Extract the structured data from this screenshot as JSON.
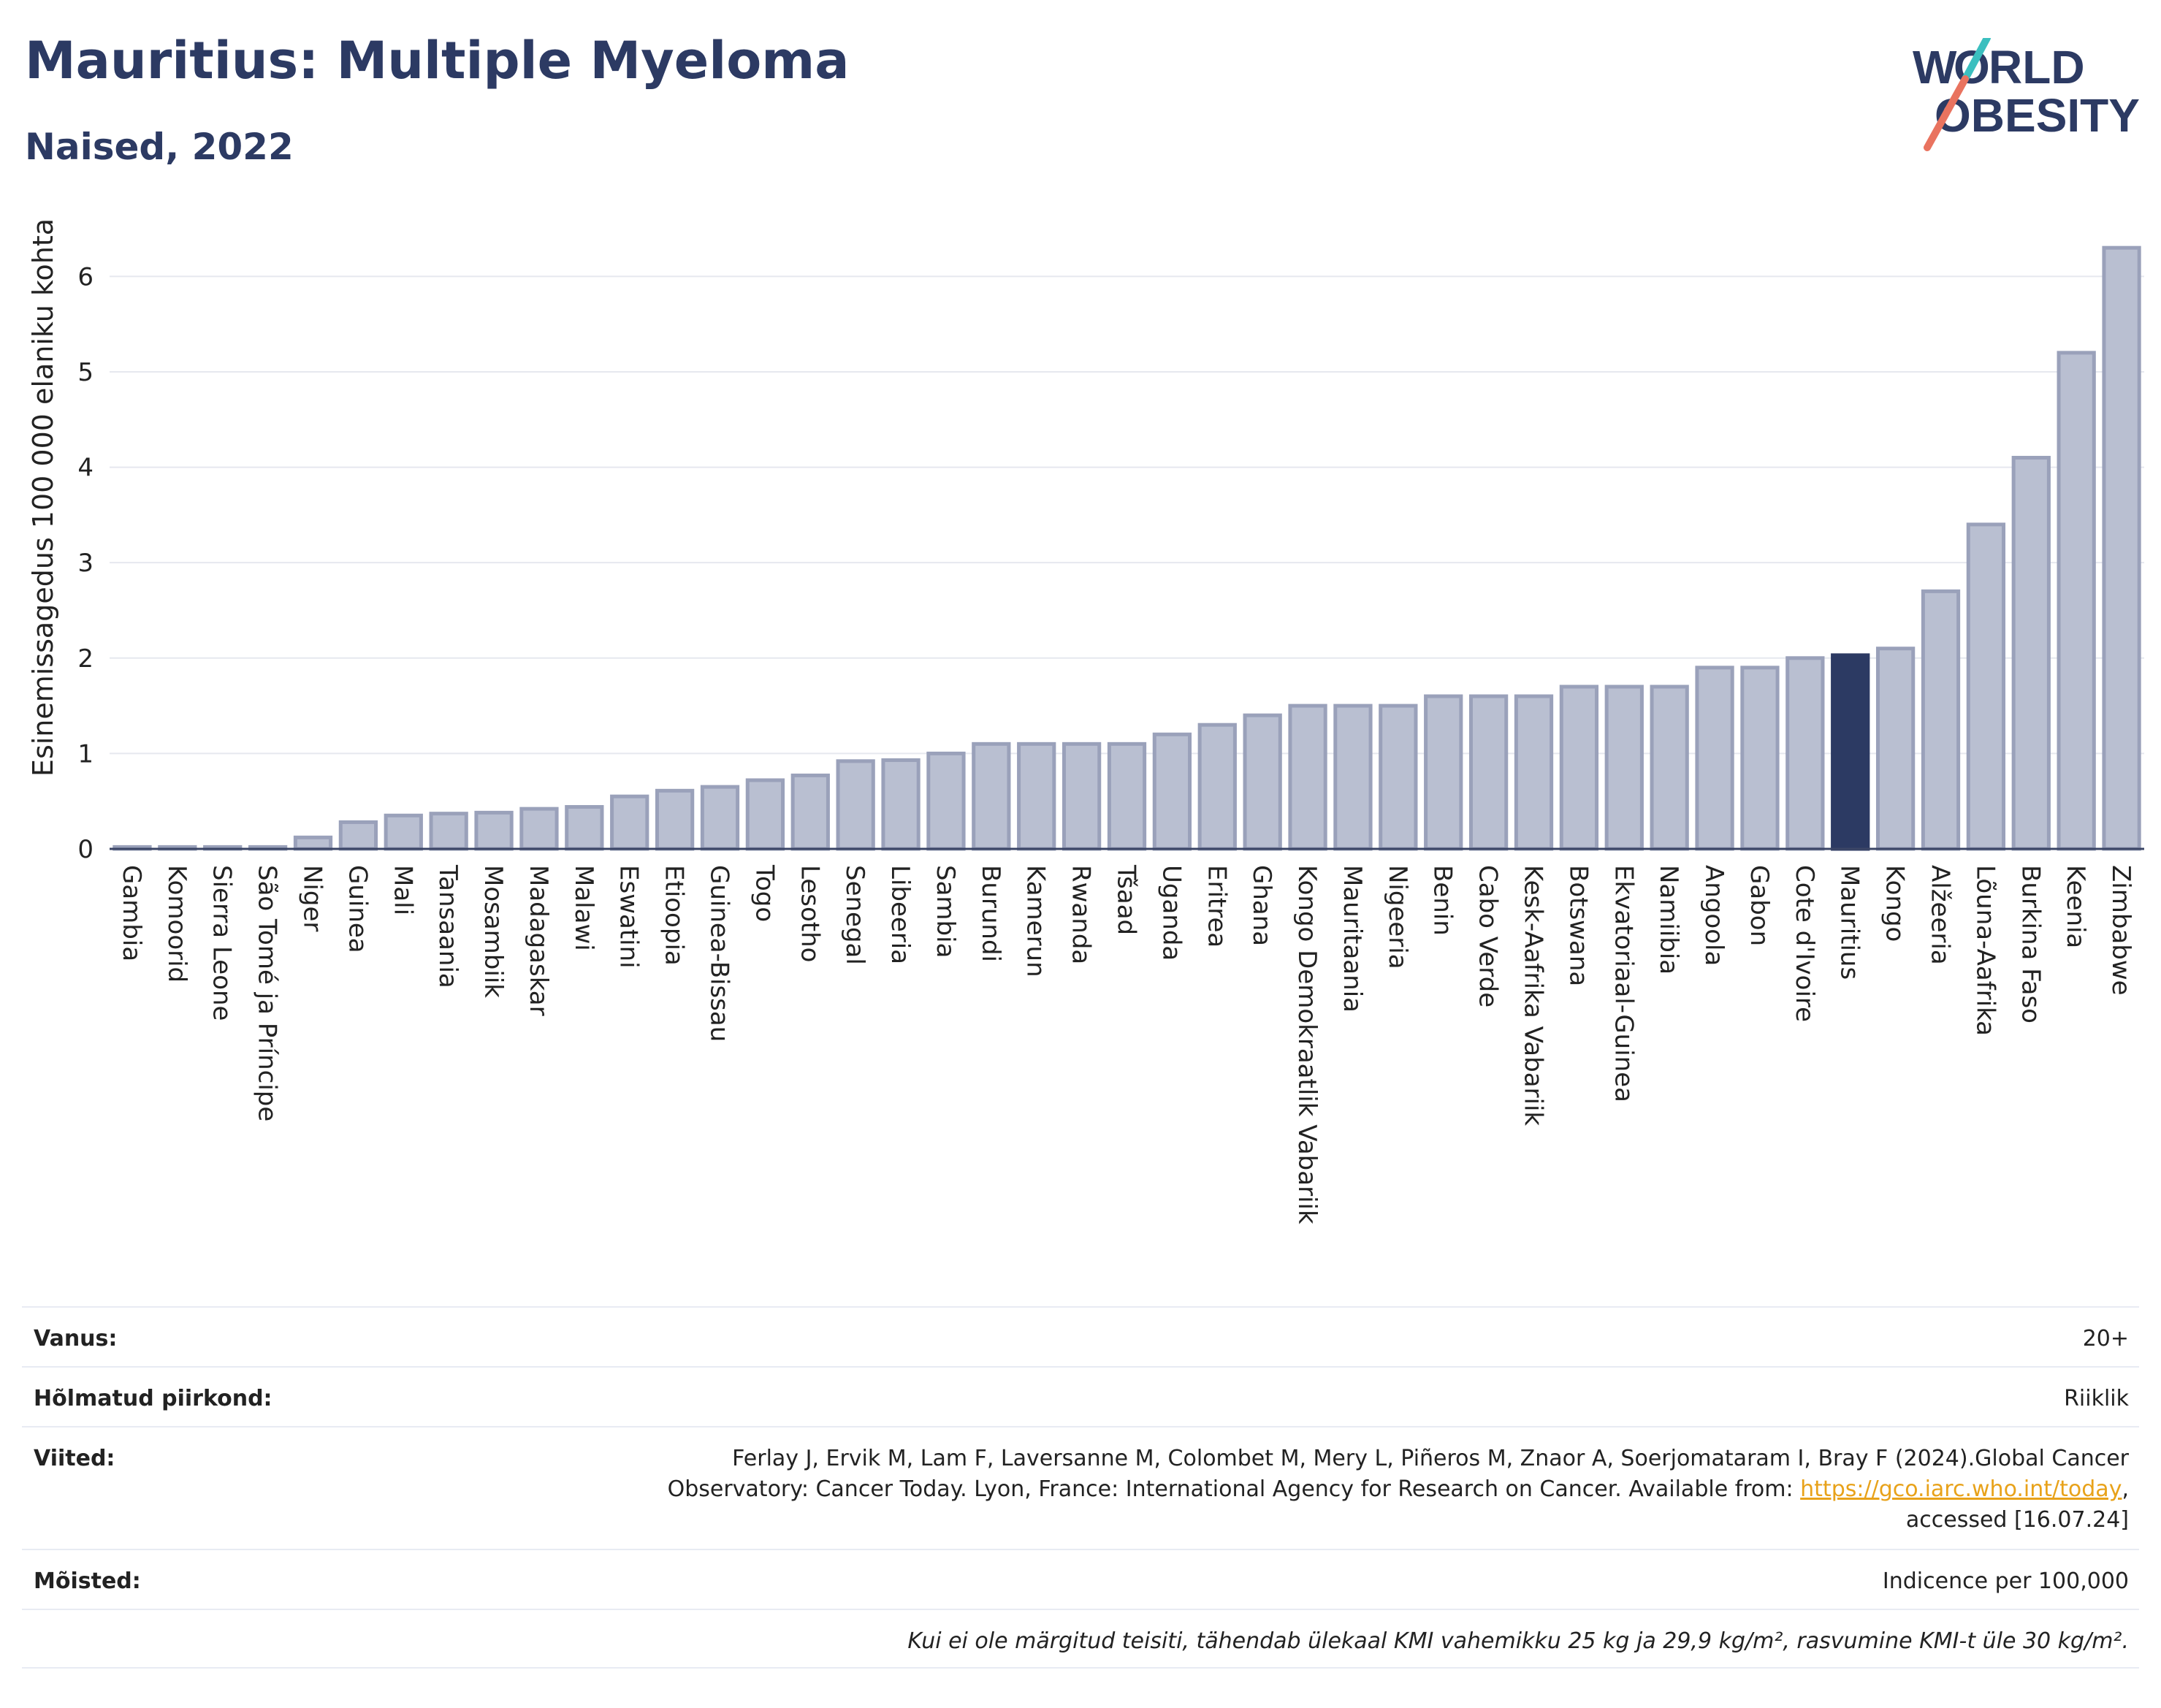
{
  "header": {
    "title": "Mauritius: Multiple Myeloma",
    "subtitle": "Naised, 2022"
  },
  "logo": {
    "line1": "WORLD",
    "line2": "OBESITY",
    "accent_teal": "#3bbfbf",
    "accent_coral": "#e9735f",
    "text_color": "#2c3a63"
  },
  "colors": {
    "bar": "#b9bfd1",
    "bar_stroke": "#9aa1ba",
    "highlight": "#2c3a63",
    "title": "#2c3a63",
    "grid": "#e6e8ef"
  },
  "chart_data": {
    "type": "bar",
    "ylabel": "Esinemissagedus 100 000 elaniku kohta",
    "ylim": [
      0,
      6.6
    ],
    "yticks": [
      0,
      1,
      2,
      3,
      4,
      5,
      6
    ],
    "highlight": "Mauritius",
    "grid": true,
    "categories": [
      "Gambia",
      "Komoorid",
      "Sierra Leone",
      "São Tomé ja Príncipe",
      "Niger",
      "Guinea",
      "Mali",
      "Tansaania",
      "Mosambiik",
      "Madagaskar",
      "Malawi",
      "Eswatini",
      "Etioopia",
      "Guinea-Bissau",
      "Togo",
      "Lesotho",
      "Senegal",
      "Libeeria",
      "Sambia",
      "Burundi",
      "Kamerun",
      "Rwanda",
      "Tšaad",
      "Uganda",
      "Eritrea",
      "Ghana",
      "Kongo Demokraatlik Vabariik",
      "Mauritaania",
      "Nigeeria",
      "Benin",
      "Cabo Verde",
      "Kesk-Aafrika Vabariik",
      "Botswana",
      "Ekvatoriaal-Guinea",
      "Namiibia",
      "Angoola",
      "Gabon",
      "Cote d'Ivoire",
      "Mauritius",
      "Kongo",
      "Alžeeria",
      "Lõuna-Aafrika",
      "Burkina Faso",
      "Keenia",
      "Zimbabwe"
    ],
    "values": [
      0.02,
      0.02,
      0.02,
      0.02,
      0.12,
      0.28,
      0.35,
      0.37,
      0.38,
      0.42,
      0.44,
      0.55,
      0.61,
      0.65,
      0.72,
      0.77,
      0.92,
      0.93,
      1.0,
      1.1,
      1.1,
      1.1,
      1.1,
      1.2,
      1.3,
      1.4,
      1.5,
      1.5,
      1.5,
      1.6,
      1.6,
      1.6,
      1.7,
      1.7,
      1.7,
      1.9,
      1.9,
      2.0,
      2.03,
      2.1,
      2.7,
      3.4,
      4.1,
      5.2,
      6.3
    ]
  },
  "info": {
    "age_label": "Vanus:",
    "age_value": "20+",
    "region_label": "Hõlmatud piirkond:",
    "region_value": "Riiklik",
    "refs_label": "Viited:",
    "refs_line1": "Ferlay J, Ervik M, Lam F, Laversanne M, Colombet M, Mery L, Piñeros M, Znaor A, Soerjomataram I, Bray F (2024).Global Cancer",
    "refs_line2": "Observatory: Cancer Today. Lyon, France: International Agency for Research on Cancer. Available from: ",
    "refs_link": "https://gco.iarc.who.int/today",
    "refs_line2_end": ",",
    "refs_line3": "accessed [16.07.24]",
    "def_label": "Mõisted:",
    "def_value": "Indicence per 100,000",
    "note": "Kui ei ole märgitud teisiti, tähendab ülekaal KMI vahemikku 25 kg ja 29,9 kg/m², rasvumine KMI-t üle 30 kg/m²."
  }
}
